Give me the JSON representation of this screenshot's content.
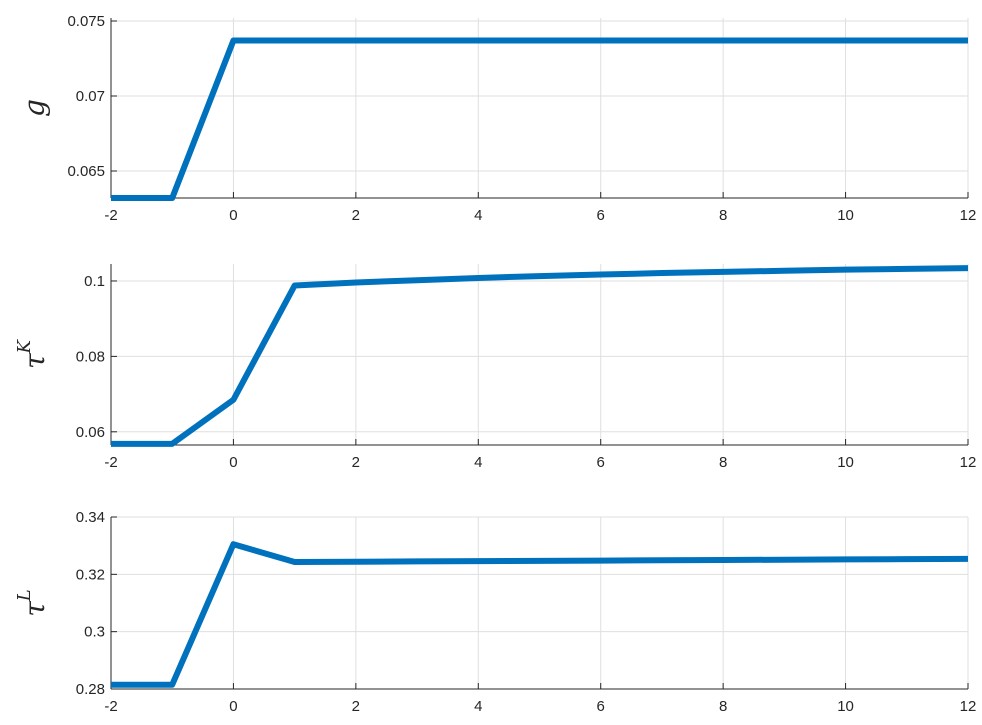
{
  "chart_data": [
    {
      "type": "line",
      "ylabel": "g",
      "ylabel_sup": "",
      "xlim": [
        -2,
        12
      ],
      "ylim": [
        0.0632,
        0.0752
      ],
      "xticks": [
        -2,
        0,
        2,
        4,
        6,
        8,
        10,
        12
      ],
      "xtick_labels": [
        "-2",
        "0",
        "2",
        "4",
        "6",
        "8",
        "10",
        "12"
      ],
      "yticks": [
        0.065,
        0.07,
        0.075
      ],
      "ytick_labels": [
        "0.065",
        "0.07",
        "0.075"
      ],
      "grid": true,
      "line_color": "#0072bd",
      "series": [
        {
          "x": [
            -2,
            -1,
            0,
            1,
            2,
            3,
            4,
            5,
            6,
            7,
            8,
            9,
            10,
            11,
            12
          ],
          "values": [
            0.0632,
            0.0632,
            0.0737,
            0.0737,
            0.0737,
            0.0737,
            0.0737,
            0.0737,
            0.0737,
            0.0737,
            0.0737,
            0.0737,
            0.0737,
            0.0737,
            0.0737
          ]
        }
      ]
    },
    {
      "type": "line",
      "ylabel": "τ",
      "ylabel_sup": "K",
      "xlim": [
        -2,
        12
      ],
      "ylim": [
        0.0565,
        0.1045
      ],
      "xticks": [
        -2,
        0,
        2,
        4,
        6,
        8,
        10,
        12
      ],
      "xtick_labels": [
        "-2",
        "0",
        "2",
        "4",
        "6",
        "8",
        "10",
        "12"
      ],
      "yticks": [
        0.06,
        0.08,
        0.1
      ],
      "ytick_labels": [
        "0.06",
        "0.08",
        "0.1"
      ],
      "grid": true,
      "line_color": "#0072bd",
      "series": [
        {
          "x": [
            -2,
            -1,
            0,
            1,
            2,
            3,
            4,
            5,
            6,
            7,
            8,
            9,
            10,
            11,
            12
          ],
          "values": [
            0.0568,
            0.0568,
            0.0685,
            0.0988,
            0.0996,
            0.1002,
            0.1008,
            0.1013,
            0.1017,
            0.1021,
            0.1024,
            0.1027,
            0.103,
            0.1032,
            0.1034
          ]
        }
      ]
    },
    {
      "type": "line",
      "ylabel": "τ",
      "ylabel_sup": "L",
      "xlim": [
        -2,
        12
      ],
      "ylim": [
        0.28,
        0.34
      ],
      "xticks": [
        -2,
        0,
        2,
        4,
        6,
        8,
        10,
        12
      ],
      "xtick_labels": [
        "-2",
        "0",
        "2",
        "4",
        "6",
        "8",
        "10",
        "12"
      ],
      "yticks": [
        0.28,
        0.3,
        0.32,
        0.34
      ],
      "ytick_labels": [
        "0.28",
        "0.3",
        "0.32",
        "0.34"
      ],
      "grid": true,
      "line_color": "#0072bd",
      "series": [
        {
          "x": [
            -2,
            -1,
            0,
            1,
            2,
            3,
            4,
            5,
            6,
            7,
            8,
            9,
            10,
            11,
            12
          ],
          "values": [
            0.2815,
            0.2815,
            0.3305,
            0.3243,
            0.3244,
            0.3245,
            0.3246,
            0.3247,
            0.3248,
            0.3249,
            0.325,
            0.3251,
            0.3252,
            0.3253,
            0.3254
          ]
        }
      ]
    }
  ]
}
